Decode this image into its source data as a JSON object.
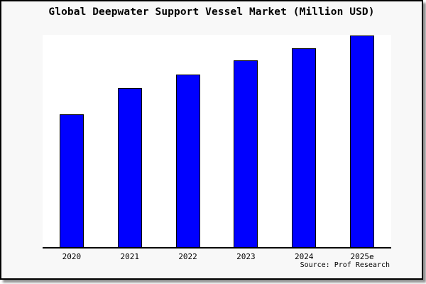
{
  "title": "Global Deepwater Support Vessel Market (Million USD)",
  "source_note": "Source: Prof Research",
  "colors": {
    "bar_fill": "#0000ff",
    "bar_border": "#000000",
    "canvas_background": "#f8f8f8",
    "plot_background": "#ffffff",
    "axis_line": "#000000",
    "text": "#000000",
    "frame_border": "#000000",
    "frame_shadow": "#8f8f8f"
  },
  "chart_data": {
    "type": "bar",
    "title": "Global Deepwater Support Vessel Market (Million USD)",
    "categories": [
      "2020",
      "2021",
      "2022",
      "2023",
      "2024",
      "2025e"
    ],
    "values": [
      62.8,
      75.3,
      81.7,
      88.4,
      93.9,
      100
    ],
    "value_scale": "relative units (% of tallest bar); chart displays no numeric y-axis",
    "xlabel": "",
    "ylabel": "",
    "ylim": [
      0,
      101
    ],
    "grid": false,
    "legend": false,
    "annotations": [
      "Source: Prof Research"
    ]
  }
}
